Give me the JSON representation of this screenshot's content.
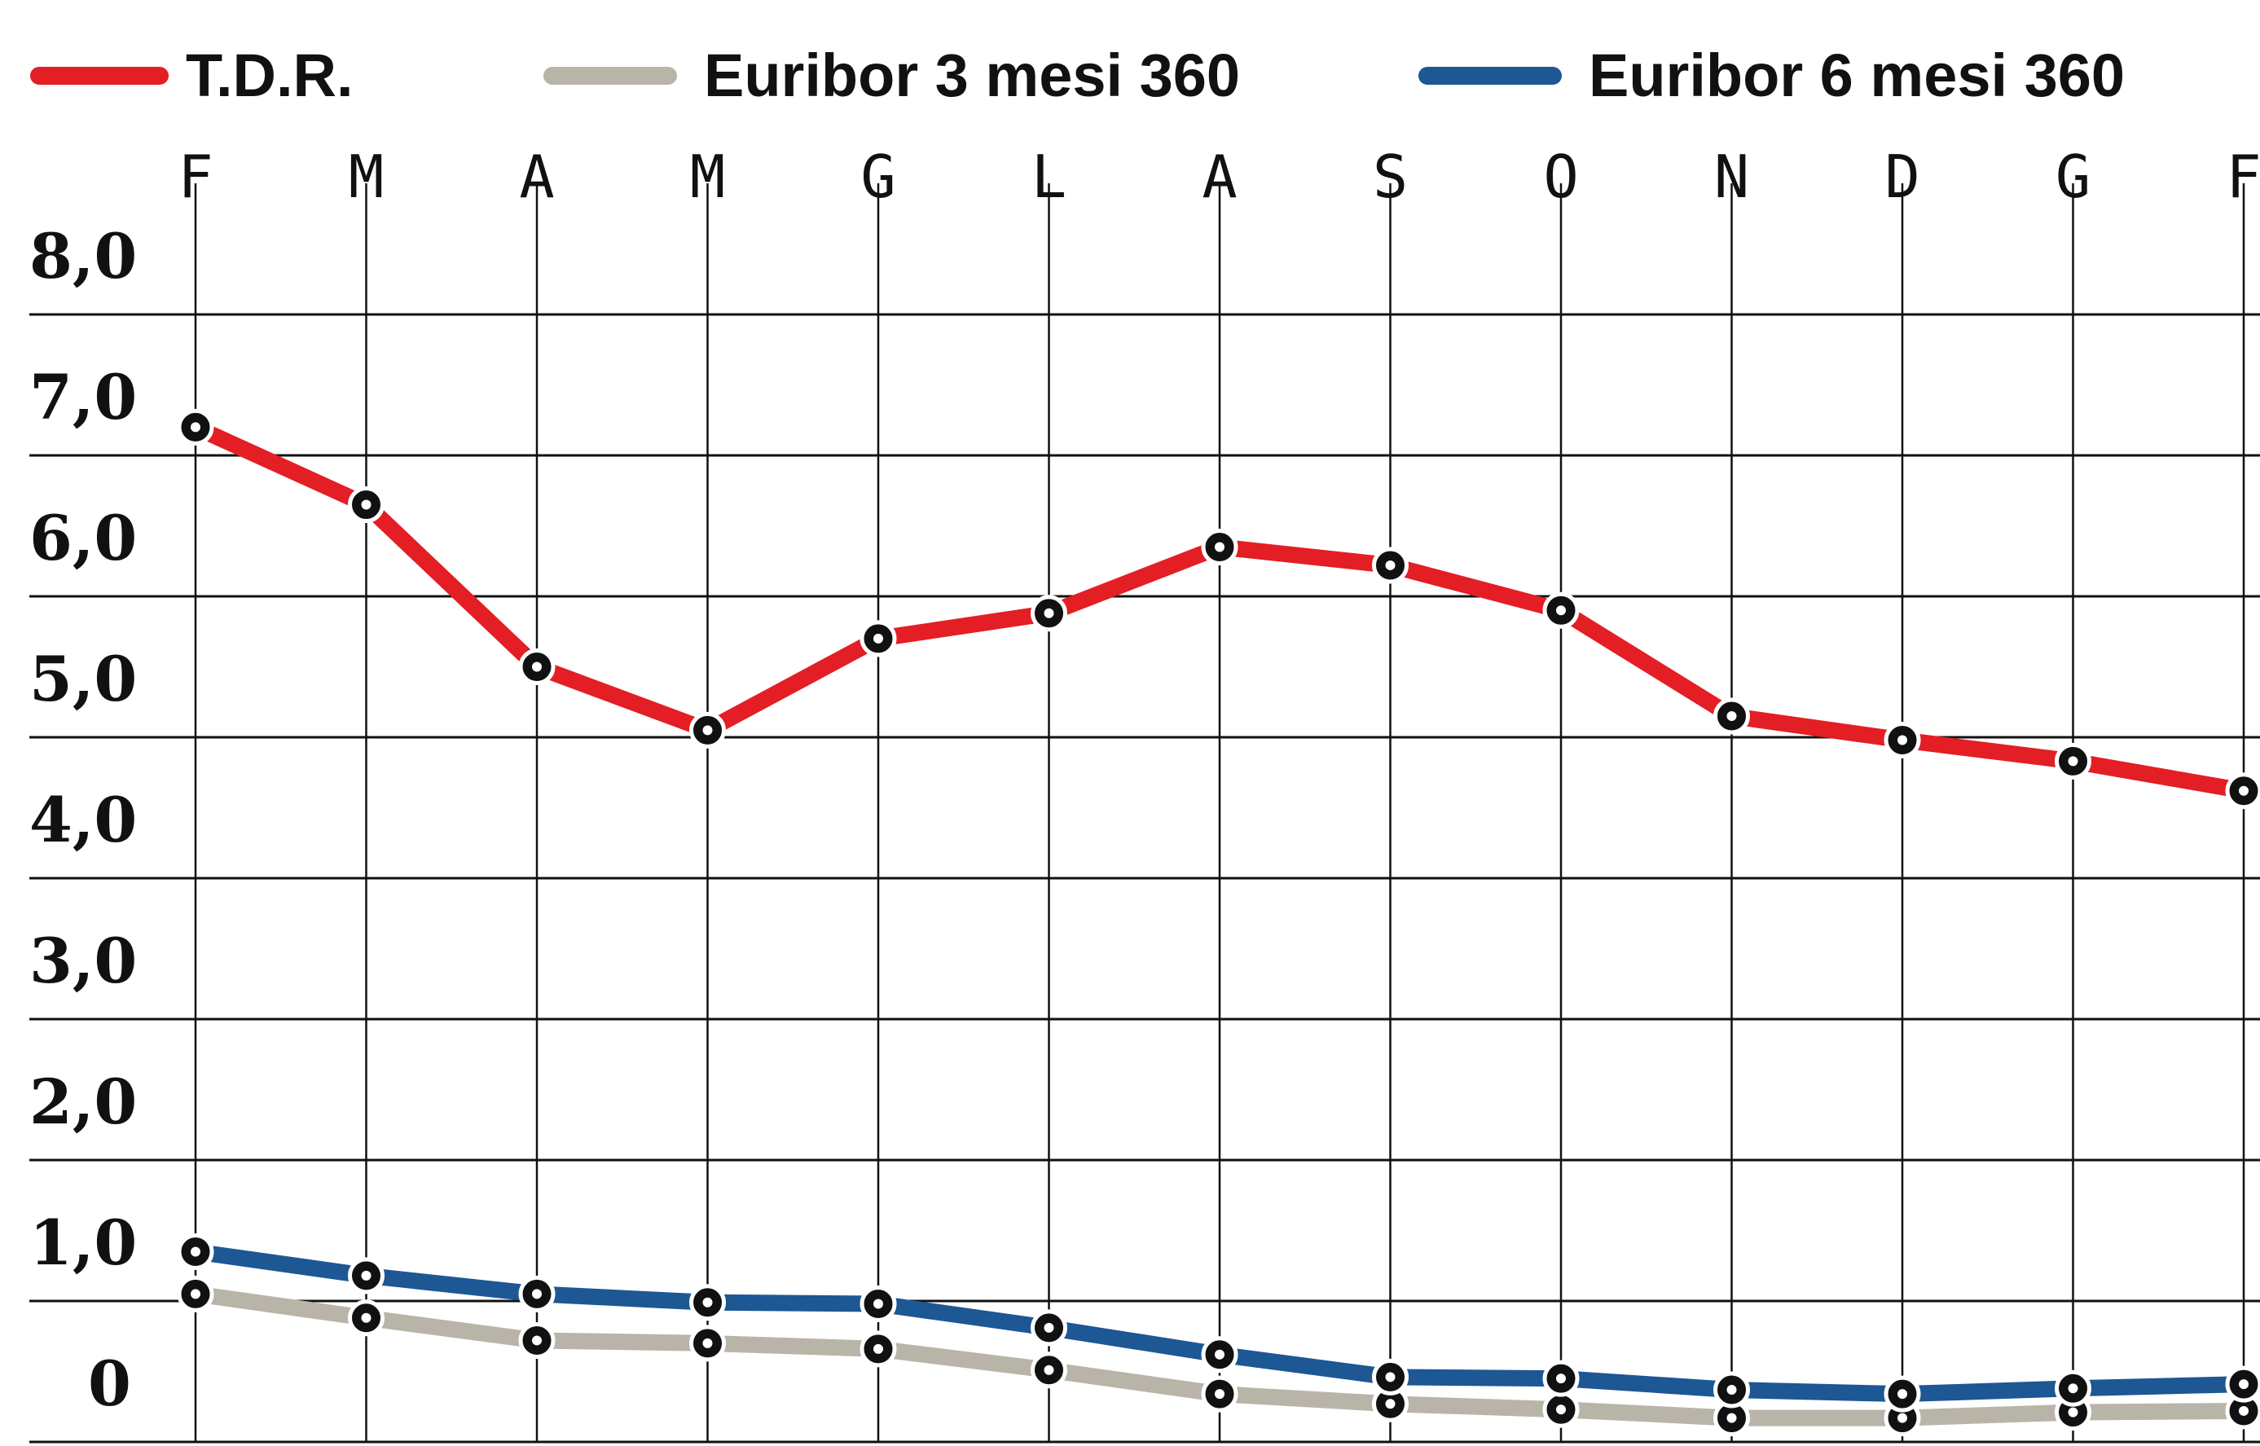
{
  "chart_data": {
    "type": "line",
    "legend_position": "top",
    "categories": [
      "F",
      "M",
      "A",
      "M",
      "G",
      "L",
      "A",
      "S",
      "O",
      "N",
      "D",
      "G",
      "F"
    ],
    "y_ticks": [
      "8,0",
      "7,0",
      "6,0",
      "5,0",
      "4,0",
      "3,0",
      "2,0",
      "1,0",
      "0"
    ],
    "y_tick_values": [
      8,
      7,
      6,
      5,
      4,
      3,
      2,
      1,
      0
    ],
    "ylim": [
      0,
      8.5
    ],
    "grid": true,
    "series": [
      {
        "name": "T.D.R.",
        "color": "#e31e24",
        "values": [
          7.2,
          6.65,
          5.5,
          5.05,
          5.7,
          5.88,
          6.35,
          6.22,
          5.9,
          5.15,
          4.98,
          4.83,
          4.62
        ]
      },
      {
        "name": "Euribor 3 mesi 360",
        "color": "#b9b4a8",
        "values": [
          1.05,
          0.88,
          0.72,
          0.7,
          0.66,
          0.51,
          0.34,
          0.27,
          0.23,
          0.17,
          0.17,
          0.21,
          0.22
        ]
      },
      {
        "name": "Euribor 6 mesi 360",
        "color": "#1d5794",
        "values": [
          1.35,
          1.18,
          1.05,
          0.99,
          0.98,
          0.81,
          0.62,
          0.46,
          0.45,
          0.37,
          0.34,
          0.38,
          0.41
        ]
      }
    ]
  }
}
